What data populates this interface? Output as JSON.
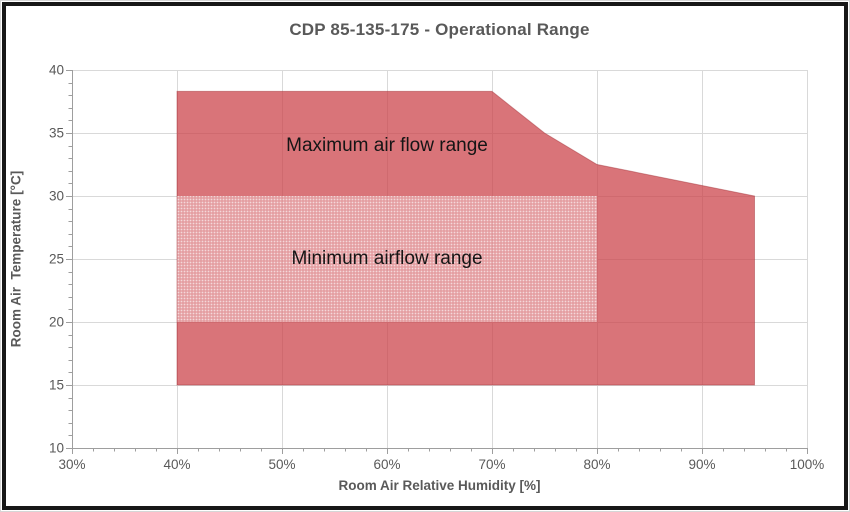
{
  "chart_data": {
    "type": "area",
    "title": "CDP 85-135-175 - Operational Range",
    "xlabel": "Room Air Relative Humidity [%]",
    "ylabel": "Room Air  Temperature [°C]",
    "xlim": [
      30,
      100
    ],
    "ylim": [
      10,
      40
    ],
    "x_major_ticks": [
      30,
      40,
      50,
      60,
      70,
      80,
      90,
      100
    ],
    "x_tick_labels": [
      "30%",
      "40%",
      "50%",
      "60%",
      "70%",
      "80%",
      "90%",
      "100%"
    ],
    "y_major_ticks": [
      10,
      15,
      20,
      25,
      30,
      35,
      40
    ],
    "y_tick_labels": [
      "10",
      "15",
      "20",
      "25",
      "30",
      "35",
      "40"
    ],
    "x_minor_step": 2,
    "y_minor_step": 1,
    "grid": true,
    "legend_position": "none",
    "series": [
      {
        "name": "Maximum air flow range",
        "style": "solid-red-area",
        "points": [
          [
            40,
            15
          ],
          [
            40,
            38.3
          ],
          [
            70,
            38.3
          ],
          [
            75,
            35
          ],
          [
            80,
            32.5
          ],
          [
            95,
            30
          ],
          [
            95,
            15
          ]
        ]
      },
      {
        "name": "Minimum airflow range",
        "style": "dotted-pattern-overlay",
        "points": [
          [
            40,
            20
          ],
          [
            40,
            30
          ],
          [
            80,
            30
          ],
          [
            80,
            20
          ]
        ]
      }
    ],
    "annotations": [
      {
        "text": "Maximum air flow range",
        "x": 60,
        "y": 34
      },
      {
        "text": "Minimum airflow range",
        "x": 60,
        "y": 25
      }
    ]
  },
  "colors": {
    "area_red": "rgba(203,62,69,0.72)",
    "area_red_stroke": "rgba(160,45,52,0.45)",
    "pattern_base": "rgba(255,255,255,0.30)",
    "pattern_dot": "rgba(255,255,255,0.60)",
    "gridline": "#d9d9d9",
    "axis_line": "#9e9e9e",
    "tick_text": "#595959",
    "title_text": "#595959",
    "annotation_text": "#151515",
    "frame_border": "#171717"
  }
}
